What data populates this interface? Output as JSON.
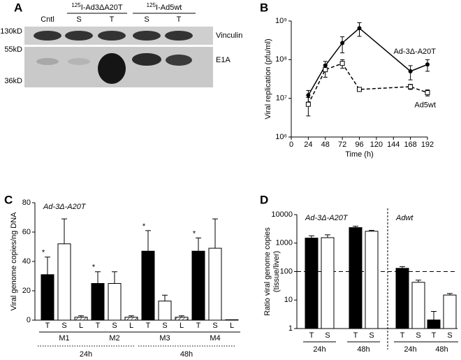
{
  "panel_labels": [
    "A",
    "B",
    "C",
    "D"
  ],
  "blot": {
    "lanes": [
      "Cntl",
      "S",
      "T",
      "S",
      "T"
    ],
    "groups": [
      {
        "isotope": "125",
        "label": "I-Ad3ΔA20T"
      },
      {
        "isotope": "125",
        "label": "I-Ad5wt"
      }
    ],
    "markers": [
      "130kD",
      "55kD",
      "36kD"
    ],
    "bands": [
      "Vinculin",
      "E1A"
    ]
  },
  "chart_data": [
    {
      "type": "line",
      "x_label": "Time (h)",
      "y_label": "Viral replication (pfu/ml)",
      "x": [
        24,
        48,
        72,
        96,
        168,
        192
      ],
      "xlim": [
        0,
        192
      ],
      "xticks": [
        0,
        24,
        48,
        72,
        96,
        120,
        144,
        168,
        192
      ],
      "yscale": "log",
      "ylim": [
        1000000,
        1000000000
      ],
      "yticks": [
        {
          "value": 1000000,
          "label": "10⁶"
        },
        {
          "value": 10000000,
          "label": "10⁷"
        },
        {
          "value": 100000000,
          "label": "10⁸"
        },
        {
          "value": 1000000000,
          "label": "10⁹"
        }
      ],
      "series": [
        {
          "name": "Ad-3Δ-A20T",
          "color": "#000000",
          "dash": false,
          "marker": "filled-circle",
          "values": [
            12000000,
            70000000,
            270000000,
            650000000,
            50000000,
            75000000
          ],
          "errors": [
            4000000,
            20000000,
            120000000,
            250000000,
            20000000,
            25000000
          ]
        },
        {
          "name": "Ad5wt",
          "color": "#000000",
          "dash": true,
          "marker": "open-square",
          "values": [
            7000000,
            55000000,
            80000000,
            17000000,
            20000000,
            14000000
          ],
          "errors": [
            3500000,
            20000000,
            20000000,
            1500000,
            3000000,
            2500000
          ]
        }
      ]
    },
    {
      "type": "bar",
      "title": "Ad-3Δ-A20T",
      "y_label": "Viral genome copies/ng DNA",
      "categories": [
        "M1",
        "M2",
        "M3",
        "M4"
      ],
      "time_groups": [
        "24h",
        "48h"
      ],
      "ylim": [
        0,
        80
      ],
      "yticks": [
        0,
        20,
        40,
        60,
        80
      ],
      "series": [
        {
          "name": "T",
          "color": "#000000",
          "hatch": false,
          "values": [
            31,
            25,
            47,
            47
          ],
          "errors": [
            12,
            8,
            14,
            9
          ],
          "annotations": [
            "*",
            "*",
            "*",
            "*"
          ]
        },
        {
          "name": "S",
          "color": "#ffffff",
          "hatch": false,
          "values": [
            52,
            25,
            13,
            49
          ],
          "errors": [
            17,
            8,
            4,
            20
          ]
        },
        {
          "name": "L",
          "color": "#ffffff",
          "hatch": true,
          "values": [
            2,
            2,
            2,
            0.3
          ],
          "errors": [
            1,
            1,
            1,
            0
          ]
        }
      ]
    },
    {
      "type": "bar",
      "yscale": "log",
      "y_label": [
        "Ratio viral genome copies",
        "(tissue/liver)"
      ],
      "group_titles": [
        "Ad-3Δ-A20T",
        "Adwt"
      ],
      "categories": [
        "24h",
        "48h",
        "24h",
        "48h"
      ],
      "ylim": [
        1,
        10000
      ],
      "yticks": [
        1,
        10,
        100,
        1000,
        10000
      ],
      "reference_line": 100,
      "series": [
        {
          "name": "T",
          "color": "#000000",
          "values": [
            1500,
            3500,
            130,
            2
          ],
          "errors": [
            300,
            400,
            20,
            2
          ]
        },
        {
          "name": "S",
          "color": "#ffffff",
          "values": [
            1550,
            2600,
            42,
            15
          ],
          "errors": [
            400,
            200,
            8,
            2
          ]
        }
      ]
    }
  ]
}
